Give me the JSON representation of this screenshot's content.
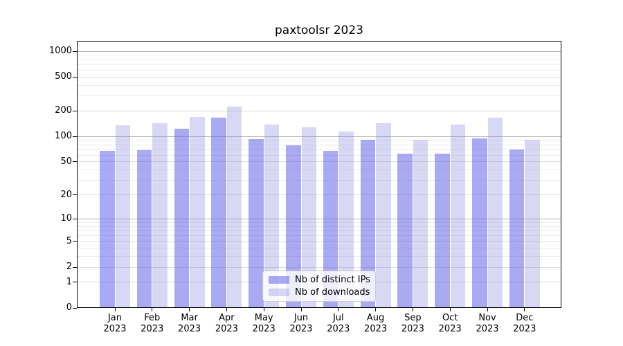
{
  "title": "paxtoolsr 2023",
  "chart_data": {
    "type": "bar",
    "title": "paxtoolsr 2023",
    "yscale": "log1p",
    "grid": true,
    "legend_position": "lower center",
    "categories": [
      "Jan",
      "Feb",
      "Mar",
      "Apr",
      "May",
      "Jun",
      "Jul",
      "Aug",
      "Sep",
      "Oct",
      "Nov",
      "Dec"
    ],
    "category_year": "2023",
    "y_ticks": [
      1000,
      500,
      200,
      100,
      50,
      20,
      10,
      5,
      2,
      1,
      0
    ],
    "ylim": [
      0,
      1300
    ],
    "series": [
      {
        "name": "Nb of distinct IPs",
        "color": "rgba(100,100,231,0.55)",
        "values": [
          66,
          68,
          121,
          163,
          92,
          77,
          66,
          89,
          62,
          62,
          93,
          69
        ]
      },
      {
        "name": "Nb of downloads",
        "color": "rgba(125,125,222,0.30)",
        "values": [
          133,
          141,
          168,
          220,
          136,
          127,
          112,
          140,
          89,
          136,
          163,
          90
        ]
      }
    ]
  },
  "colors": {
    "axis": "#000000",
    "grid_decade": "#b4b4b4",
    "grid_major": "#dedede",
    "grid_minor": "#ececec",
    "legend_border": "#cccccc",
    "background": "#ffffff"
  }
}
